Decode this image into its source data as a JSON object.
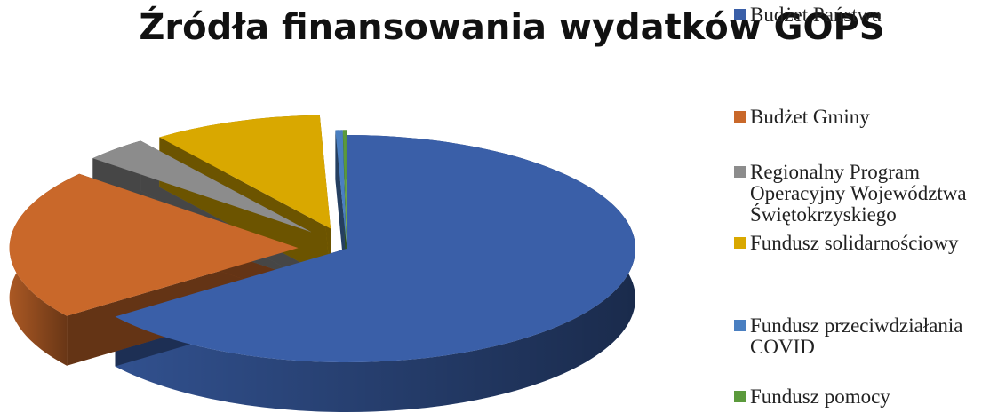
{
  "chart_data": {
    "type": "pie",
    "title": "Źródła finansowania wydatków GOPS",
    "categories": [
      "Budżet Państwa",
      "Budżet Gminy",
      "Regionalny Program Operacyjny Województwa Świętokrzyskiego",
      "Fundusz solidarnościowy",
      "Fundusz przeciwdziałania COVID",
      "Fundusz pomocy"
    ],
    "values": [
      64.8,
      21.5,
      3.6,
      9.5,
      0.4,
      0.2
    ],
    "colors": [
      "#3a5fa8",
      "#c9682a",
      "#8c8c8c",
      "#d9a800",
      "#4a7fc1",
      "#5b9a3c"
    ],
    "legend": "right",
    "style": "3d-exploded"
  }
}
